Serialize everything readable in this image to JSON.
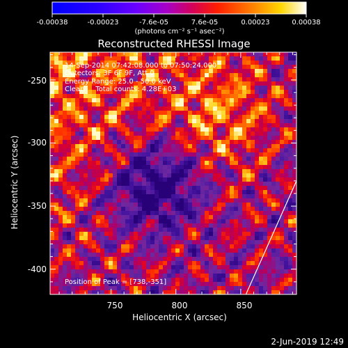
{
  "colorbar": {
    "tick_labels": [
      "-0.00038",
      "-0.00023",
      "-7.6e-05",
      "7.6e-05",
      "0.00023",
      "0.00038"
    ],
    "unit_label": "(photons cm⁻² s⁻¹ asec⁻²)",
    "range": [
      -0.00038,
      0.00038
    ]
  },
  "chart_data": {
    "type": "heatmap",
    "title": "Reconstructed RHESSI Image",
    "xlabel": "Heliocentric X (arcsec)",
    "ylabel": "Heliocentric Y (arcsec)",
    "xlim": [
      703,
      893
    ],
    "ylim": [
      -420,
      -228
    ],
    "x_ticks": [
      750,
      800,
      850
    ],
    "y_ticks": [
      -250,
      -300,
      -350,
      -400
    ],
    "annotations": [
      "14-Sep-2014 07:42:08.000 to 07:50:24.000",
      "Detectors: 3F 6F 9F, Att 0",
      "Energy Range: 25.0 - 50.0 keV",
      "Clean     Total counts: 4.28E+03"
    ],
    "peak_label": "Position of Peak = [738,-351]",
    "peak": [
      738,
      -351
    ],
    "limb_line": [
      [
        854,
        -420
      ],
      [
        893,
        -330
      ]
    ]
  },
  "footer": {
    "date": "2-Jun-2019 12:49"
  },
  "colors": {
    "axis": "#ffffff",
    "background": "#000000"
  }
}
